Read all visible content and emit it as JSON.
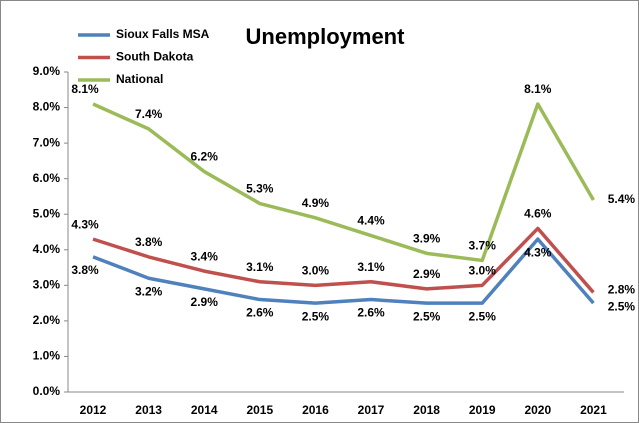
{
  "chart_data": {
    "type": "line",
    "title": "Unemployment",
    "categories": [
      "2012",
      "2013",
      "2014",
      "2015",
      "2016",
      "2017",
      "2018",
      "2019",
      "2020",
      "2021"
    ],
    "series": [
      {
        "name": "Sioux Falls MSA",
        "color": "#4f81bd",
        "values": [
          3.8,
          3.2,
          2.9,
          2.6,
          2.5,
          2.6,
          2.5,
          2.5,
          4.3,
          2.5
        ],
        "value_labels": [
          "3.8%",
          "3.2%",
          "2.9%",
          "2.6%",
          "2.5%",
          "2.6%",
          "2.5%",
          "2.5%",
          "4.3%",
          "2.5%"
        ]
      },
      {
        "name": "South Dakota",
        "color": "#c0504d",
        "values": [
          4.3,
          3.8,
          3.4,
          3.1,
          3.0,
          3.1,
          2.9,
          3.0,
          4.6,
          2.8
        ],
        "value_labels": [
          "4.3%",
          "3.8%",
          "3.4%",
          "3.1%",
          "3.0%",
          "3.1%",
          "2.9%",
          "3.0%",
          "4.6%",
          "2.8%"
        ]
      },
      {
        "name": "National",
        "color": "#9bbb59",
        "values": [
          8.1,
          7.4,
          6.2,
          5.3,
          4.9,
          4.4,
          3.9,
          3.7,
          8.1,
          5.4
        ],
        "value_labels": [
          "8.1%",
          "7.4%",
          "6.2%",
          "5.3%",
          "4.9%",
          "4.4%",
          "3.9%",
          "3.7%",
          "8.1%",
          "5.4%"
        ]
      }
    ],
    "ylim": [
      0,
      9
    ],
    "yticks": [
      {
        "value": 0,
        "label": "0.0%"
      },
      {
        "value": 1,
        "label": "1.0%"
      },
      {
        "value": 2,
        "label": "2.0%"
      },
      {
        "value": 3,
        "label": "3.0%"
      },
      {
        "value": 4,
        "label": "4.0%"
      },
      {
        "value": 5,
        "label": "5.0%"
      },
      {
        "value": 6,
        "label": "6.0%"
      },
      {
        "value": 7,
        "label": "7.0%"
      },
      {
        "value": 8,
        "label": "8.0%"
      },
      {
        "value": 9,
        "label": "9.0%"
      }
    ],
    "grid": false,
    "legend": "top-left"
  }
}
